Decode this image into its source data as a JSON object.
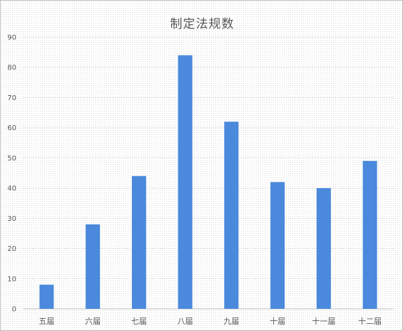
{
  "chart_data": {
    "type": "bar",
    "title": "制定法规数",
    "xlabel": "",
    "ylabel": "",
    "categories": [
      "五届",
      "六届",
      "七届",
      "八届",
      "九届",
      "十届",
      "十一届",
      "十二届"
    ],
    "values": [
      8,
      28,
      44,
      84,
      62,
      42,
      40,
      49
    ],
    "ylim": [
      0,
      90
    ],
    "yticks": [
      "0",
      "10",
      "20",
      "30",
      "40",
      "50",
      "60",
      "70",
      "80",
      "90"
    ],
    "grid": true,
    "legend": "none",
    "bar_color": "#4a89dc",
    "grid_color": "#d9d9d9"
  }
}
